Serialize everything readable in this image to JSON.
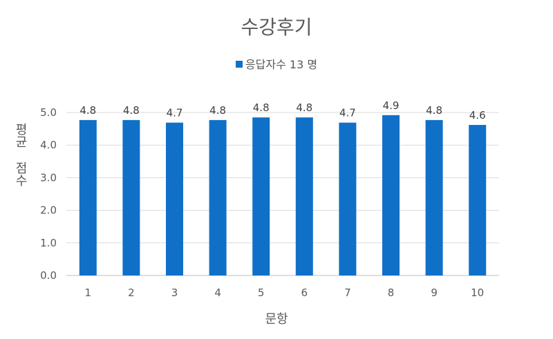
{
  "chart_data": {
    "type": "bar",
    "title": "수강후기",
    "legend_position": "top",
    "series": [
      {
        "name": "응답자수 13 명",
        "color": "#1070c8",
        "values": [
          4.77,
          4.77,
          4.69,
          4.77,
          4.85,
          4.85,
          4.69,
          4.92,
          4.77,
          4.62
        ],
        "data_labels": [
          "4.8",
          "4.8",
          "4.7",
          "4.8",
          "4.8",
          "4.8",
          "4.7",
          "4.9",
          "4.8",
          "4.6"
        ]
      }
    ],
    "categories": [
      "1",
      "2",
      "3",
      "4",
      "5",
      "6",
      "7",
      "8",
      "9",
      "10"
    ],
    "xlabel": "문항",
    "ylabel_line1": "평균",
    "ylabel_line2": "점수",
    "ylim": [
      0,
      5
    ],
    "yticks": [
      "0.0",
      "1.0",
      "2.0",
      "3.0",
      "4.0",
      "5.0"
    ],
    "grid": true
  }
}
